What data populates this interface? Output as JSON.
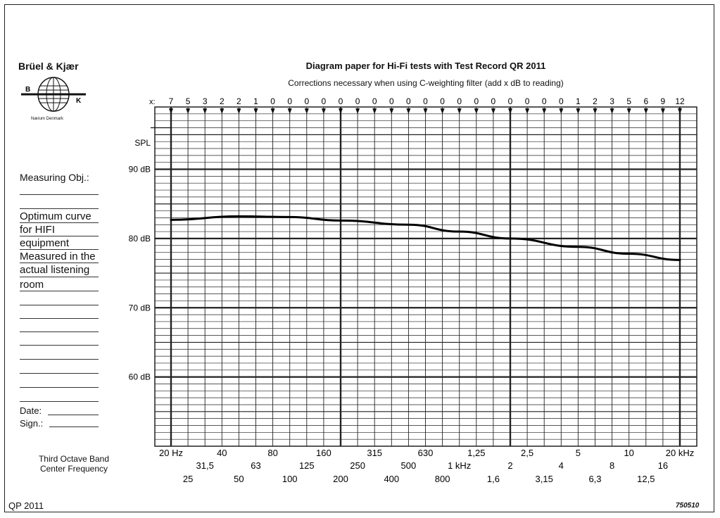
{
  "header": {
    "brand": "Brüel & Kjær",
    "logo_left_letter": "B",
    "logo_right_letter": "K",
    "logo_caption": "Nærum Denmark",
    "title": "Diagram paper for Hi-Fi tests with Test Record QR 2011",
    "subtitle": "Corrections necessary when using C-weighting filter (add x dB to reading)"
  },
  "form": {
    "measuring_label": "Measuring Obj.:",
    "handwritten_lines": [
      "Optimum curve",
      "for HIFI",
      "equipment",
      "Measured in the",
      "actual listening",
      "room"
    ],
    "date_label": "Date:",
    "sign_label": "Sign.:",
    "band_label_line1": "Third Octave Band",
    "band_label_line2": "Center Frequency"
  },
  "footer": {
    "left": "QP 2011",
    "right": "750510"
  },
  "chart_data": {
    "type": "line",
    "title": "Diagram paper for Hi-Fi tests with Test Record QR 2011",
    "subtitle": "Corrections necessary when using C-weighting filter (add x dB to reading)",
    "ylabel": "SPL",
    "y_unit": "dB",
    "ylim": [
      50,
      99
    ],
    "y_ticks": [
      {
        "value": 90,
        "label": "90 dB"
      },
      {
        "value": 80,
        "label": "80 dB"
      },
      {
        "value": 70,
        "label": "70 dB"
      },
      {
        "value": 60,
        "label": "60 dB"
      }
    ],
    "x_scale": "log",
    "xlim_hz": [
      20,
      20000
    ],
    "x_tick_label_prefix": "x:",
    "c_weighting_corrections": [
      "7",
      "5",
      "3",
      "2",
      "2",
      "1",
      "0",
      "0",
      "0",
      "0",
      "0",
      "0",
      "0",
      "0",
      "0",
      "0",
      "0",
      "0",
      "0",
      "0",
      "0",
      "0",
      "0",
      "0",
      "1",
      "2",
      "3",
      "5",
      "6",
      "9",
      "12"
    ],
    "x_tick_rows": [
      [
        {
          "i": 0,
          "label": "20 Hz"
        },
        {
          "i": 3,
          "label": "40"
        },
        {
          "i": 6,
          "label": "80"
        },
        {
          "i": 9,
          "label": "160"
        },
        {
          "i": 12,
          "label": "315"
        },
        {
          "i": 15,
          "label": "630"
        },
        {
          "i": 18,
          "label": "1,25"
        },
        {
          "i": 21,
          "label": "2,5"
        },
        {
          "i": 24,
          "label": "5"
        },
        {
          "i": 27,
          "label": "10"
        },
        {
          "i": 30,
          "label": "20 kHz"
        }
      ],
      [
        {
          "i": 2,
          "label": "31,5"
        },
        {
          "i": 5,
          "label": "63"
        },
        {
          "i": 8,
          "label": "125"
        },
        {
          "i": 11,
          "label": "250"
        },
        {
          "i": 14,
          "label": "500"
        },
        {
          "i": 17,
          "label": "1 kHz"
        },
        {
          "i": 20,
          "label": "2"
        },
        {
          "i": 23,
          "label": "4"
        },
        {
          "i": 26,
          "label": "8"
        },
        {
          "i": 29,
          "label": "16"
        }
      ],
      [
        {
          "i": 1,
          "label": "25"
        },
        {
          "i": 4,
          "label": "50"
        },
        {
          "i": 7,
          "label": "100"
        },
        {
          "i": 10,
          "label": "200"
        },
        {
          "i": 13,
          "label": "400"
        },
        {
          "i": 16,
          "label": "800"
        },
        {
          "i": 19,
          "label": "1,6"
        },
        {
          "i": 22,
          "label": "3,15"
        },
        {
          "i": 25,
          "label": "6,3"
        },
        {
          "i": 28,
          "label": "12,5"
        }
      ]
    ],
    "series": [
      {
        "x_hz": [
          20,
          50,
          100,
          200,
          500,
          1000,
          2000,
          5000,
          10000,
          20000
        ],
        "y_db": [
          82.7,
          83.2,
          83.1,
          82.6,
          82.0,
          81.0,
          80.0,
          78.8,
          77.8,
          76.9
        ]
      }
    ],
    "grid": true
  }
}
